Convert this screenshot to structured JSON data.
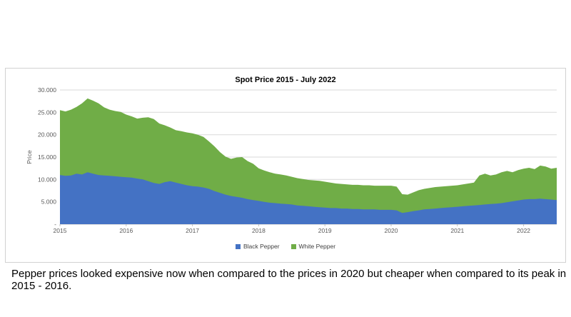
{
  "chart": {
    "title": "Spot Price 2015 - July 2022",
    "ylabel": "Price"
  },
  "caption": "Pepper prices looked expensive now when compared to the prices in 2020 but cheaper when compared to its peak in 2015 - 2016.",
  "chart_data": {
    "type": "area",
    "stacked": true,
    "title": "Spot Price 2015 - July 2022",
    "xlabel": "",
    "ylabel": "Price",
    "ylim": [
      0,
      30000
    ],
    "ytick_step": 5000,
    "ytick_labels": [
      "-",
      "5.000",
      "10.000",
      "15.000",
      "20.000",
      "25.000",
      "30.000"
    ],
    "x_tick_labels": [
      "2015",
      "2016",
      "2017",
      "2018",
      "2019",
      "2020",
      "2021",
      "2022"
    ],
    "x_months_per_tick": 12,
    "grid": true,
    "legend_position": "bottom",
    "colors": {
      "black_pepper": "#4472C4",
      "white_pepper": "#70AD47",
      "gridline": "#d9d9d9",
      "axis": "#bfbfbf"
    },
    "series": [
      {
        "name": "Black Pepper",
        "color": "#4472C4",
        "values": [
          11000,
          10800,
          10900,
          11300,
          11100,
          11600,
          11300,
          11000,
          10900,
          10800,
          10700,
          10600,
          10500,
          10400,
          10200,
          10000,
          9600,
          9200,
          9000,
          9400,
          9600,
          9300,
          9000,
          8700,
          8500,
          8400,
          8200,
          7900,
          7400,
          7000,
          6600,
          6300,
          6100,
          5900,
          5600,
          5400,
          5200,
          5000,
          4800,
          4700,
          4600,
          4500,
          4400,
          4200,
          4100,
          4000,
          3900,
          3800,
          3700,
          3600,
          3600,
          3500,
          3500,
          3400,
          3400,
          3300,
          3300,
          3300,
          3200,
          3200,
          3200,
          3100,
          2500,
          2700,
          2900,
          3100,
          3300,
          3400,
          3500,
          3600,
          3700,
          3800,
          3900,
          4000,
          4100,
          4200,
          4300,
          4400,
          4500,
          4600,
          4700,
          4900,
          5100,
          5300,
          5500,
          5600,
          5600,
          5700,
          5600,
          5500,
          5400
        ]
      },
      {
        "name": "White Pepper",
        "color": "#70AD47",
        "values": [
          14500,
          14400,
          14700,
          14900,
          15900,
          16500,
          16300,
          16000,
          15200,
          14800,
          14600,
          14500,
          14000,
          13700,
          13400,
          13800,
          14300,
          14300,
          13500,
          12700,
          12000,
          11700,
          11800,
          11800,
          11800,
          11600,
          11300,
          10600,
          10000,
          9100,
          8500,
          8300,
          8800,
          9100,
          8500,
          8100,
          7300,
          7000,
          6800,
          6600,
          6500,
          6400,
          6200,
          6100,
          6000,
          5900,
          5900,
          5900,
          5800,
          5700,
          5500,
          5500,
          5400,
          5400,
          5400,
          5400,
          5400,
          5300,
          5400,
          5400,
          5400,
          5300,
          4200,
          3900,
          4200,
          4500,
          4600,
          4700,
          4800,
          4800,
          4800,
          4800,
          4800,
          4900,
          5000,
          5100,
          6600,
          6900,
          6400,
          6500,
          6900,
          7000,
          6500,
          6800,
          6900,
          7000,
          6700,
          7400,
          7300,
          6900,
          7200
        ]
      }
    ]
  }
}
